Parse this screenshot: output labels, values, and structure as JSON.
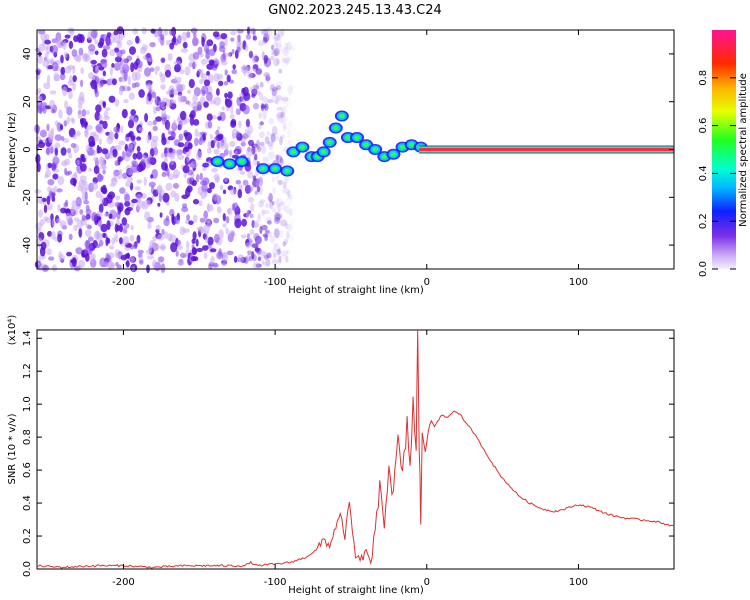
{
  "title": "GN02.2023.245.13.43.C24",
  "chart_data": [
    {
      "type": "heatmap",
      "title": "GN02.2023.245.13.43.C24",
      "xlabel": "Height of straight line (km)",
      "ylabel": "Frequency (Hz)",
      "xlim": [
        -257,
        163
      ],
      "ylim": [
        -50,
        50
      ],
      "x_ticks": [
        -200,
        -100,
        0,
        100
      ],
      "y_ticks": [
        -40,
        -20,
        0,
        20,
        40
      ],
      "noise_region_x": [
        -257,
        -95
      ],
      "ridge": [
        {
          "x": -138,
          "y": -5
        },
        {
          "x": -130,
          "y": -6
        },
        {
          "x": -122,
          "y": -5
        },
        {
          "x": -108,
          "y": -8
        },
        {
          "x": -100,
          "y": -8
        },
        {
          "x": -92,
          "y": -9
        },
        {
          "x": -88,
          "y": -1
        },
        {
          "x": -82,
          "y": 1
        },
        {
          "x": -76,
          "y": -3
        },
        {
          "x": -72,
          "y": -3
        },
        {
          "x": -68,
          "y": -1
        },
        {
          "x": -64,
          "y": 3
        },
        {
          "x": -60,
          "y": 9
        },
        {
          "x": -56,
          "y": 14
        },
        {
          "x": -52,
          "y": 5
        },
        {
          "x": -46,
          "y": 5
        },
        {
          "x": -40,
          "y": 2
        },
        {
          "x": -34,
          "y": 0
        },
        {
          "x": -28,
          "y": -3
        },
        {
          "x": -22,
          "y": -2
        },
        {
          "x": -16,
          "y": 1
        },
        {
          "x": -10,
          "y": 2
        },
        {
          "x": -4,
          "y": 1
        }
      ],
      "line_x_range": [
        -5,
        163
      ],
      "line_y": 0,
      "colorbar": {
        "label": "Normalized spectral amplitude",
        "range": [
          0.0,
          1.0
        ],
        "ticks": [
          "0.0",
          "0.2",
          "0.4",
          "0.6",
          "0.8"
        ]
      }
    },
    {
      "type": "line",
      "xlabel": "Height of straight line (km)",
      "ylabel": "SNR (10 * v/v)",
      "multiplier": "(x10⁴)",
      "xlim": [
        -257,
        163
      ],
      "ylim": [
        0.0,
        1.45
      ],
      "x_ticks": [
        -200,
        -100,
        0,
        100
      ],
      "y_ticks": [
        "0.0",
        "0.2",
        "0.4",
        "0.6",
        "0.8",
        "1.0",
        "1.2",
        "1.4"
      ],
      "series": [
        {
          "color": "#e03030",
          "points": [
            [
              -257,
              0.02
            ],
            [
              -240,
              0.01
            ],
            [
              -220,
              0.02
            ],
            [
              -200,
              0.02
            ],
            [
              -180,
              0.01
            ],
            [
              -160,
              0.02
            ],
            [
              -140,
              0.02
            ],
            [
              -120,
              0.02
            ],
            [
              -116,
              0.04
            ],
            [
              -112,
              0.02
            ],
            [
              -100,
              0.03
            ],
            [
              -90,
              0.04
            ],
            [
              -80,
              0.07
            ],
            [
              -72,
              0.12
            ],
            [
              -68,
              0.18
            ],
            [
              -64,
              0.14
            ],
            [
              -60,
              0.26
            ],
            [
              -57,
              0.32
            ],
            [
              -54,
              0.2
            ],
            [
              -51,
              0.4
            ],
            [
              -49,
              0.22
            ],
            [
              -47,
              0.08
            ],
            [
              -44,
              0.05
            ],
            [
              -40,
              0.1
            ],
            [
              -37,
              0.06
            ],
            [
              -34,
              0.2
            ],
            [
              -31,
              0.48
            ],
            [
              -28,
              0.3
            ],
            [
              -25,
              0.62
            ],
            [
              -22,
              0.45
            ],
            [
              -19,
              0.78
            ],
            [
              -16,
              0.55
            ],
            [
              -13,
              0.88
            ],
            [
              -11,
              0.62
            ],
            [
              -9,
              1.02
            ],
            [
              -7,
              0.7
            ],
            [
              -6,
              1.45
            ],
            [
              -5,
              0.75
            ],
            [
              -4,
              0.3
            ],
            [
              -3,
              0.86
            ],
            [
              -1,
              0.66
            ],
            [
              1,
              0.86
            ],
            [
              4,
              0.92
            ],
            [
              7,
              0.9
            ],
            [
              10,
              0.93
            ],
            [
              14,
              0.92
            ],
            [
              18,
              0.96
            ],
            [
              22,
              0.94
            ],
            [
              26,
              0.88
            ],
            [
              30,
              0.84
            ],
            [
              34,
              0.78
            ],
            [
              38,
              0.72
            ],
            [
              42,
              0.66
            ],
            [
              46,
              0.6
            ],
            [
              50,
              0.55
            ],
            [
              55,
              0.5
            ],
            [
              60,
              0.45
            ],
            [
              66,
              0.41
            ],
            [
              72,
              0.38
            ],
            [
              78,
              0.36
            ],
            [
              84,
              0.35
            ],
            [
              90,
              0.36
            ],
            [
              96,
              0.38
            ],
            [
              100,
              0.39
            ],
            [
              106,
              0.38
            ],
            [
              112,
              0.36
            ],
            [
              120,
              0.33
            ],
            [
              130,
              0.31
            ],
            [
              140,
              0.3
            ],
            [
              150,
              0.29
            ],
            [
              163,
              0.26
            ]
          ]
        }
      ]
    }
  ]
}
